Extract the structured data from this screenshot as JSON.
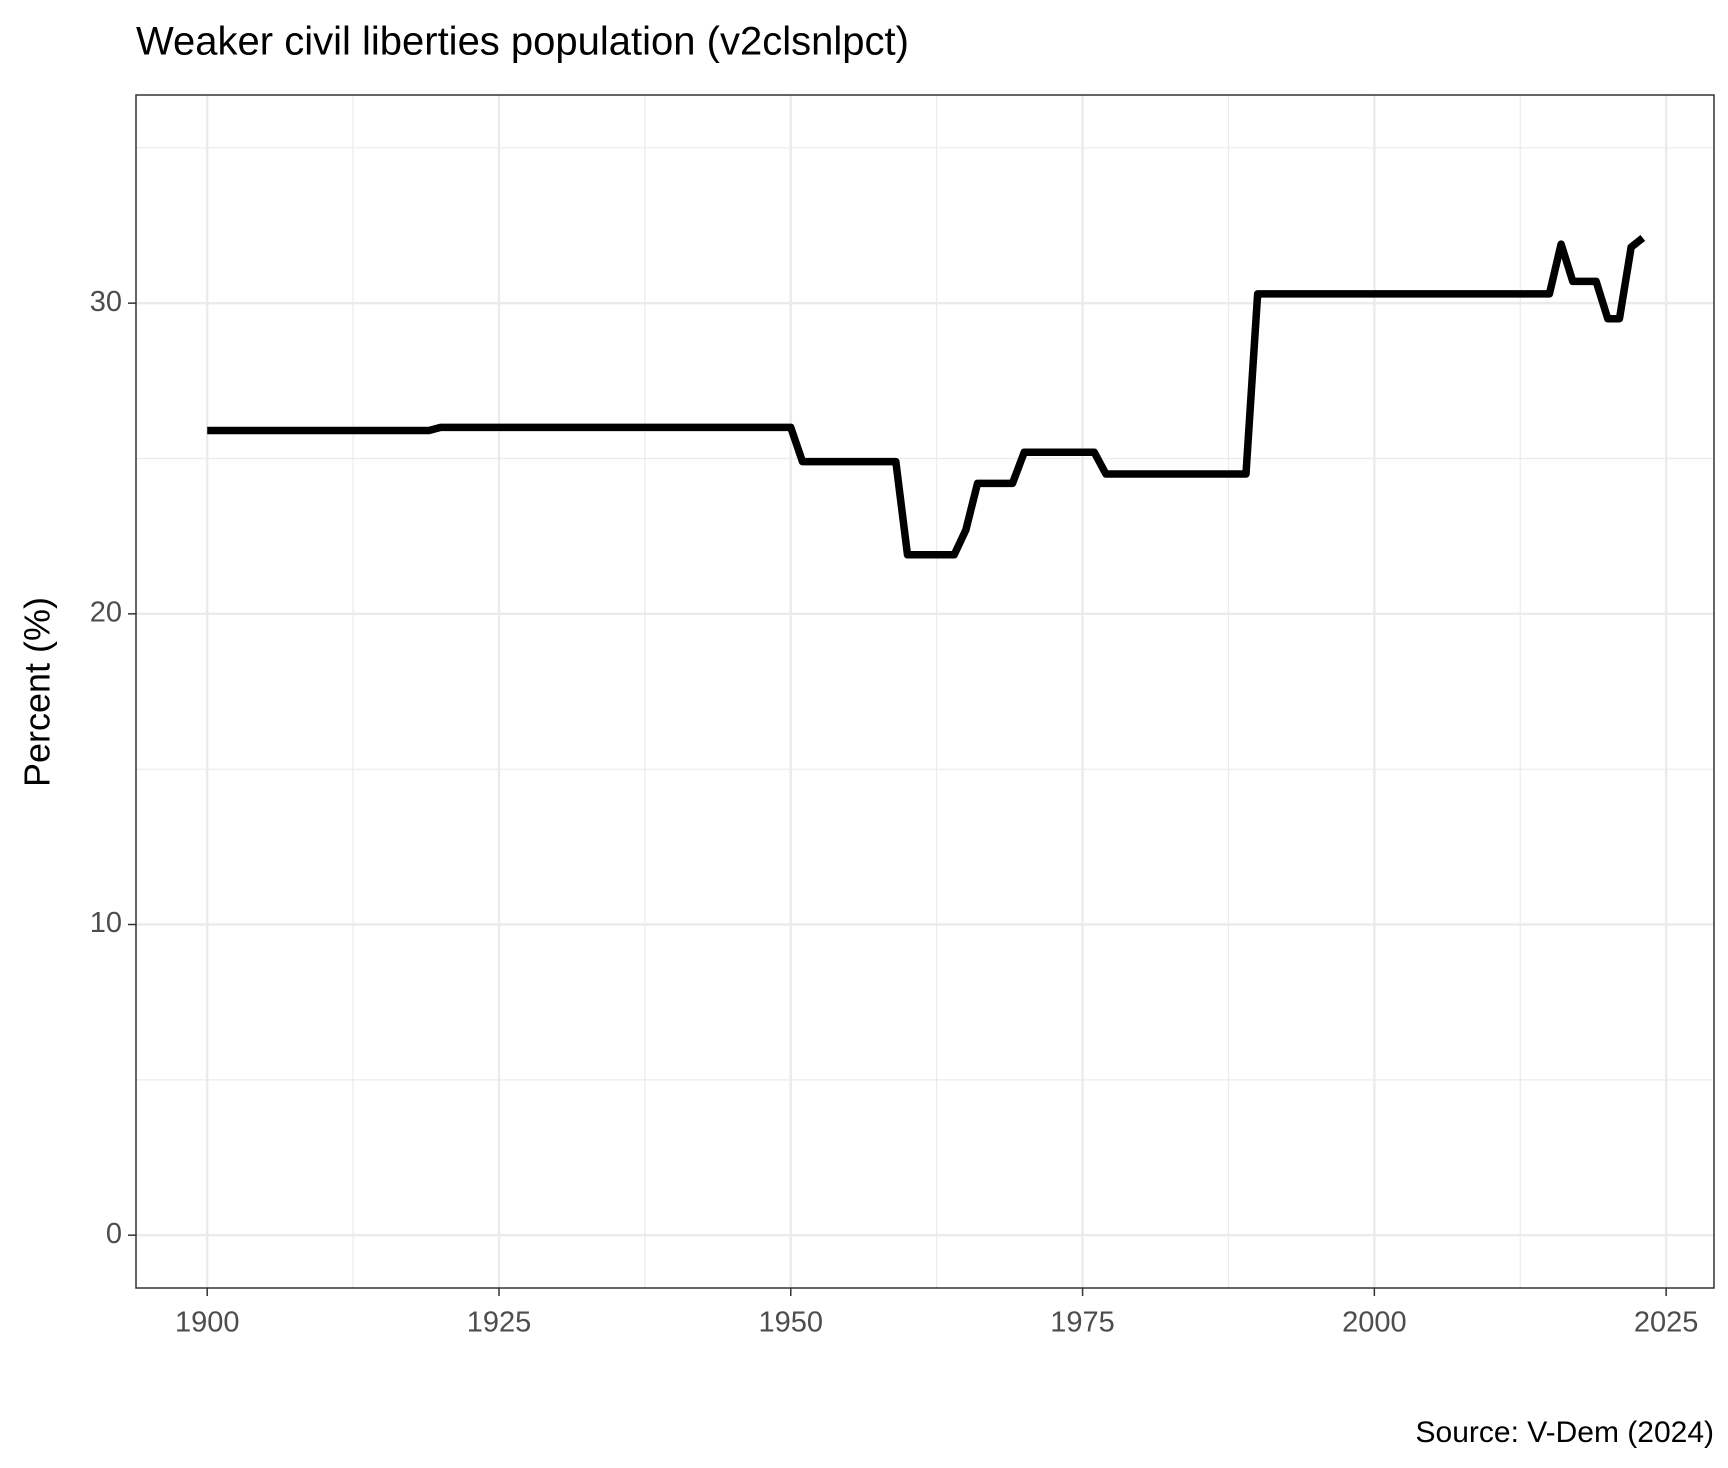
{
  "chart_data": {
    "type": "line",
    "title": "Weaker civil liberties population (v2clsnlpct)",
    "y_label": "Percent (%)",
    "caption": "Source: V-Dem (2024)",
    "x": [
      1900,
      1901,
      1902,
      1903,
      1904,
      1905,
      1906,
      1907,
      1908,
      1909,
      1910,
      1911,
      1912,
      1913,
      1914,
      1915,
      1916,
      1917,
      1918,
      1919,
      1920,
      1921,
      1922,
      1923,
      1924,
      1925,
      1926,
      1927,
      1928,
      1929,
      1930,
      1931,
      1932,
      1933,
      1934,
      1935,
      1936,
      1937,
      1938,
      1939,
      1940,
      1941,
      1942,
      1943,
      1944,
      1945,
      1946,
      1947,
      1948,
      1949,
      1950,
      1951,
      1952,
      1953,
      1954,
      1955,
      1956,
      1957,
      1958,
      1959,
      1960,
      1961,
      1962,
      1963,
      1964,
      1965,
      1966,
      1967,
      1968,
      1969,
      1970,
      1971,
      1972,
      1973,
      1974,
      1975,
      1976,
      1977,
      1978,
      1979,
      1980,
      1981,
      1982,
      1983,
      1984,
      1985,
      1986,
      1987,
      1988,
      1989,
      1990,
      1991,
      1992,
      1993,
      1994,
      1995,
      1996,
      1997,
      1998,
      1999,
      2000,
      2001,
      2002,
      2003,
      2004,
      2005,
      2006,
      2007,
      2008,
      2009,
      2010,
      2011,
      2012,
      2013,
      2014,
      2015,
      2016,
      2017,
      2018,
      2019,
      2020,
      2021,
      2022,
      2023
    ],
    "values": [
      25.9,
      25.9,
      25.9,
      25.9,
      25.9,
      25.9,
      25.9,
      25.9,
      25.9,
      25.9,
      25.9,
      25.9,
      25.9,
      25.9,
      25.9,
      25.9,
      25.9,
      25.9,
      25.9,
      25.9,
      26.0,
      26.0,
      26.0,
      26.0,
      26.0,
      26.0,
      26.0,
      26.0,
      26.0,
      26.0,
      26.0,
      26.0,
      26.0,
      26.0,
      26.0,
      26.0,
      26.0,
      26.0,
      26.0,
      26.0,
      26.0,
      26.0,
      26.0,
      26.0,
      26.0,
      26.0,
      26.0,
      26.0,
      26.0,
      26.0,
      26.0,
      24.9,
      24.9,
      24.9,
      24.9,
      24.9,
      24.9,
      24.9,
      24.9,
      24.9,
      21.9,
      21.9,
      21.9,
      21.9,
      21.9,
      22.7,
      24.2,
      24.2,
      24.2,
      24.2,
      25.2,
      25.2,
      25.2,
      25.2,
      25.2,
      25.2,
      25.2,
      24.5,
      24.5,
      24.5,
      24.5,
      24.5,
      24.5,
      24.5,
      24.5,
      24.5,
      24.5,
      24.5,
      24.5,
      24.5,
      30.3,
      30.3,
      30.3,
      30.3,
      30.3,
      30.3,
      30.3,
      30.3,
      30.3,
      30.3,
      30.3,
      30.3,
      30.3,
      30.3,
      30.3,
      30.3,
      30.3,
      30.3,
      30.3,
      30.3,
      30.3,
      30.3,
      30.3,
      30.3,
      30.3,
      30.3,
      31.9,
      30.7,
      30.7,
      30.7,
      29.5,
      29.5,
      31.8,
      32.1
    ],
    "color": "#000000",
    "xlim": [
      1893.9,
      2029.1
    ],
    "ylim": [
      -1.7,
      36.7
    ],
    "xticks": [
      1900,
      1925,
      1950,
      1975,
      2000,
      2025
    ],
    "yticks": [
      0,
      10,
      20,
      30
    ],
    "minor_xticks": [
      1912.5,
      1937.5,
      1962.5,
      1987.5,
      2012.5
    ],
    "minor_yticks": [
      5,
      15,
      25,
      35
    ],
    "grid": true
  }
}
